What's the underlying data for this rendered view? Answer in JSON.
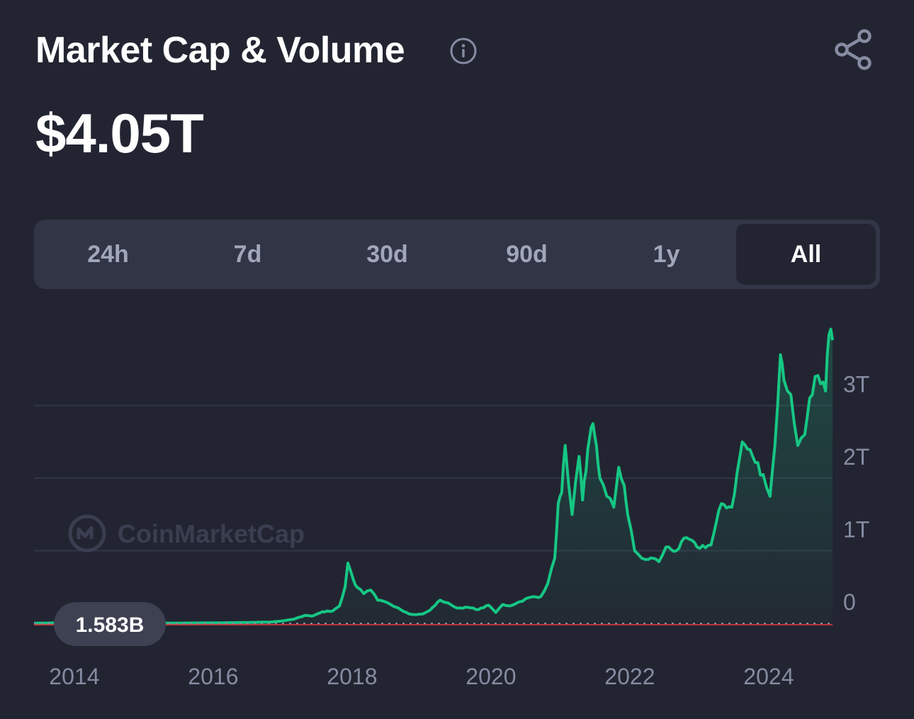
{
  "header": {
    "title": "Market Cap & Volume",
    "info_icon": "info-icon",
    "share_icon": "share-icon"
  },
  "summary": {
    "value": "$4.05T"
  },
  "time_ranges": {
    "options": [
      "24h",
      "7d",
      "30d",
      "90d",
      "1y",
      "All"
    ],
    "selected": "All"
  },
  "watermark": {
    "text": "CoinMarketCap"
  },
  "hover_label": {
    "value": "1.583B"
  },
  "colors": {
    "background": "#222531",
    "line": "#16c784",
    "volume": "#ea3943",
    "panel": "#323546",
    "muted_text": "#858ca2"
  },
  "chart_data": {
    "type": "area",
    "title": "",
    "xlabel": "",
    "ylabel": "",
    "x_ticks": [
      "2014",
      "2016",
      "2018",
      "2020",
      "2022",
      "2024"
    ],
    "y_ticks": [
      "0",
      "1T",
      "2T",
      "3T"
    ],
    "xlim": [
      2013.45,
      2024.95
    ],
    "ylim": [
      0,
      4000000000000.0
    ],
    "grid": true,
    "legend": "none",
    "series": [
      {
        "x": [
          2013.45,
          2014.0,
          2014.5,
          2015.0,
          2015.5,
          2016.0,
          2016.5,
          2016.85,
          2017.0,
          2017.1,
          2017.2,
          2017.35,
          2017.45,
          2017.6,
          2017.75,
          2017.85,
          2017.93,
          2017.97,
          2018.05,
          2018.1,
          2018.2,
          2018.3,
          2018.4,
          2018.55,
          2018.7,
          2018.85,
          2018.95,
          2019.05,
          2019.15,
          2019.3,
          2019.45,
          2019.55,
          2019.7,
          2019.85,
          2020.0,
          2020.1,
          2020.2,
          2020.3,
          2020.45,
          2020.6,
          2020.75,
          2020.85,
          2020.95,
          2021.0,
          2021.05,
          2021.1,
          2021.2,
          2021.3,
          2021.35,
          2021.4,
          2021.45,
          2021.5,
          2021.55,
          2021.6,
          2021.7,
          2021.8,
          2021.87,
          2021.95,
          2022.0,
          2022.1,
          2022.2,
          2022.3,
          2022.35,
          2022.45,
          2022.55,
          2022.7,
          2022.85,
          2023.0,
          2023.2,
          2023.35,
          2023.5,
          2023.65,
          2023.8,
          2023.95,
          2024.05,
          2024.12,
          2024.2,
          2024.25,
          2024.35,
          2024.45,
          2024.55,
          2024.62,
          2024.7,
          2024.78,
          2024.85,
          2024.9,
          2024.95
        ],
        "y": [
          1583000000.0,
          10000000000.0,
          6000000000.0,
          4000000000.0,
          4000000000.0,
          7000000000.0,
          12000000000.0,
          18000000000.0,
          30000000000.0,
          45000000000.0,
          60000000000.0,
          110000000000.0,
          100000000000.0,
          160000000000.0,
          170000000000.0,
          240000000000.0,
          500000000000.0,
          830000000000.0,
          600000000000.0,
          500000000000.0,
          410000000000.0,
          460000000000.0,
          320000000000.0,
          280000000000.0,
          210000000000.0,
          130000000000.0,
          120000000000.0,
          130000000000.0,
          180000000000.0,
          320000000000.0,
          260000000000.0,
          210000000000.0,
          220000000000.0,
          190000000000.0,
          250000000000.0,
          150000000000.0,
          260000000000.0,
          240000000000.0,
          300000000000.0,
          360000000000.0,
          370000000000.0,
          550000000000.0,
          900000000000.0,
          1650000000000.0,
          1800000000000.0,
          2450000000000.0,
          1500000000000.0,
          2300000000000.0,
          1700000000000.0,
          2100000000000.0,
          2550000000000.0,
          2750000000000.0,
          2450000000000.0,
          2000000000000.0,
          1750000000000.0,
          1600000000000.0,
          2150000000000.0,
          1900000000000.0,
          1500000000000.0,
          1000000000000.0,
          900000000000.0,
          880000000000.0,
          900000000000.0,
          850000000000.0,
          1050000000000.0,
          1000000000000.0,
          1180000000000.0,
          1050000000000.0,
          1080000000000.0,
          1650000000000.0,
          1600000000000.0,
          2500000000000.0,
          2300000000000.0,
          2050000000000.0,
          1750000000000.0,
          2450000000000.0,
          3700000000000.0,
          3350000000000.0,
          3150000000000.0,
          2450000000000.0,
          2600000000000.0,
          3100000000000.0,
          3400000000000.0,
          3300000000000.0,
          3200000000000.0,
          3980000000000.0,
          3900000000000.0
        ]
      },
      {
        "x": [
          2013.45,
          2024.95
        ],
        "y": [
          1000000000.0,
          1000000000.0
        ]
      }
    ]
  }
}
